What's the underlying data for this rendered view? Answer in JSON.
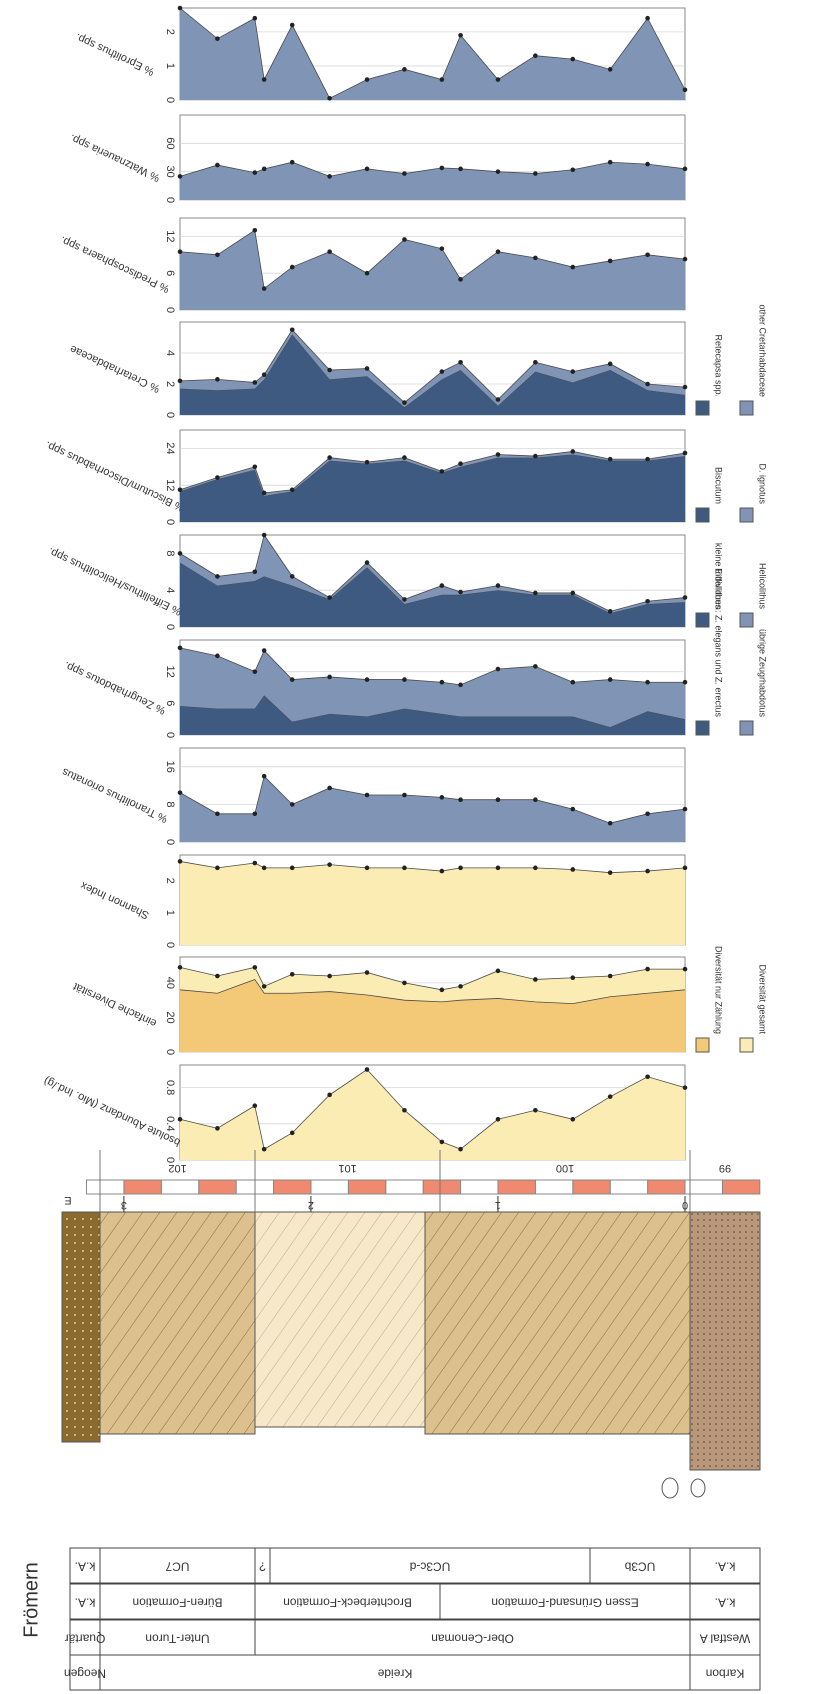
{
  "location": "Frömern",
  "chart_data": [
    {
      "type": "area",
      "title": "% Eprolithus spp.",
      "x": [
        2.7,
        2.5,
        2.3,
        2.25,
        2.1,
        1.9,
        1.7,
        1.5,
        1.3,
        1.2,
        1.0,
        0.8,
        0.6,
        0.4,
        0.2,
        0
      ],
      "xlim": [
        0,
        2.7
      ],
      "ylim": [
        0,
        2.7
      ],
      "yticks": [
        0,
        1,
        2
      ],
      "grid": true,
      "series": [
        {
          "color": "#8094b5",
          "markers": true,
          "values": [
            2.7,
            1.8,
            2.4,
            0.6,
            2.2,
            0.05,
            0.6,
            0.9,
            0.6,
            1.9,
            0.6,
            1.3,
            1.2,
            0.9,
            2.4,
            0.3
          ]
        }
      ]
    },
    {
      "type": "area",
      "title": "% Watznaueria spp.",
      "x": [
        2.7,
        2.5,
        2.3,
        2.25,
        2.1,
        1.9,
        1.7,
        1.5,
        1.3,
        1.2,
        1.0,
        0.8,
        0.6,
        0.4,
        0.2,
        0
      ],
      "xlim": [
        0,
        2.7
      ],
      "ylim": [
        0,
        90
      ],
      "yticks": [
        0,
        30,
        60
      ],
      "grid": true,
      "series": [
        {
          "color": "#8094b5",
          "markers": true,
          "values": [
            25,
            37,
            29,
            33,
            40,
            25,
            33,
            28,
            34,
            33,
            30,
            28,
            32,
            40,
            38,
            33
          ]
        }
      ]
    },
    {
      "type": "area",
      "title": "% Prediscosphaera spp.",
      "x": [
        2.7,
        2.5,
        2.3,
        2.25,
        2.1,
        1.9,
        1.7,
        1.5,
        1.3,
        1.2,
        1.0,
        0.8,
        0.6,
        0.4,
        0.2,
        0
      ],
      "xlim": [
        0,
        2.7
      ],
      "ylim": [
        0,
        15
      ],
      "yticks": [
        0,
        6,
        12
      ],
      "grid": true,
      "series": [
        {
          "color": "#8094b5",
          "markers": true,
          "values": [
            9.5,
            9,
            13,
            3.5,
            7,
            9.5,
            6,
            11.5,
            10,
            5,
            9.5,
            8.5,
            7,
            8,
            9,
            8.3
          ]
        }
      ]
    },
    {
      "type": "area",
      "title": "% Cretarhabdaceae",
      "stacked": true,
      "x": [
        2.7,
        2.5,
        2.3,
        2.25,
        2.1,
        1.9,
        1.7,
        1.5,
        1.3,
        1.2,
        1.0,
        0.8,
        0.6,
        0.4,
        0.2,
        0
      ],
      "xlim": [
        0,
        2.7
      ],
      "ylim": [
        0,
        6
      ],
      "yticks": [
        0,
        2,
        4
      ],
      "grid": true,
      "series": [
        {
          "name": "Retecapsa spp.",
          "color": "#3e5a80",
          "values": [
            1.7,
            1.6,
            1.7,
            2.3,
            5.2,
            2.3,
            2.5,
            0.5,
            2.3,
            2.9,
            0.6,
            2.8,
            2.1,
            2.9,
            1.6,
            1.3
          ]
        },
        {
          "name": "other Cretarhabdaceae",
          "color": "#8094b5",
          "markers": true,
          "values": [
            0.5,
            0.7,
            0.4,
            0.3,
            0.3,
            0.6,
            0.5,
            0.3,
            0.5,
            0.5,
            0.4,
            0.6,
            0.7,
            0.4,
            0.4,
            0.5
          ]
        }
      ]
    },
    {
      "type": "area",
      "title": "% Biscutum/Discorhabdus spp.",
      "stacked": true,
      "x": [
        2.7,
        2.5,
        2.3,
        2.25,
        2.1,
        1.9,
        1.7,
        1.5,
        1.3,
        1.2,
        1.0,
        0.8,
        0.6,
        0.4,
        0.2,
        0
      ],
      "xlim": [
        0,
        2.7
      ],
      "ylim": [
        0,
        30
      ],
      "yticks": [
        0,
        12,
        24
      ],
      "grid": true,
      "series": [
        {
          "name": "Biscutum",
          "color": "#3e5a80",
          "values": [
            10,
            14,
            17,
            8.5,
            10,
            20,
            19,
            20,
            16,
            18,
            21,
            21,
            22,
            20,
            20,
            21.5
          ]
        },
        {
          "name": "D. ignotus",
          "color": "#8094b5",
          "markers": true,
          "values": [
            0.5,
            0.5,
            1,
            1,
            0.5,
            1,
            0.5,
            1,
            0.5,
            1,
            1,
            0.5,
            1,
            0.5,
            0.5,
            1
          ]
        }
      ]
    },
    {
      "type": "area",
      "title": "% Eiffellithus/Helicolithus spp.",
      "stacked": true,
      "x": [
        2.7,
        2.5,
        2.3,
        2.25,
        2.1,
        1.9,
        1.7,
        1.5,
        1.3,
        1.2,
        1.0,
        0.8,
        0.6,
        0.4,
        0.2,
        0
      ],
      "xlim": [
        0,
        2.7
      ],
      "ylim": [
        0,
        10
      ],
      "yticks": [
        0,
        4,
        8
      ],
      "grid": true,
      "series": [
        {
          "name": "Eiffellithus",
          "color": "#3e5a80",
          "values": [
            7,
            4.5,
            5,
            5.5,
            4.5,
            3,
            6.5,
            2.5,
            3.5,
            3.5,
            4,
            3.5,
            3.5,
            1.5,
            2.5,
            2.7
          ]
        },
        {
          "name": "Helicolithus",
          "color": "#8094b5",
          "markers": true,
          "values": [
            1,
            1,
            1,
            4.5,
            1,
            0.2,
            0.5,
            0.5,
            1,
            0.3,
            0.5,
            0.2,
            0.2,
            0.2,
            0.3,
            0.5
          ]
        }
      ]
    },
    {
      "type": "area",
      "title": "% Zeugrhabdotus spp.",
      "stacked": true,
      "x": [
        2.7,
        2.5,
        2.3,
        2.25,
        2.1,
        1.9,
        1.7,
        1.5,
        1.3,
        1.2,
        1.0,
        0.8,
        0.6,
        0.4,
        0.2,
        0
      ],
      "xlim": [
        0,
        2.7
      ],
      "ylim": [
        0,
        18
      ],
      "yticks": [
        0,
        6,
        12
      ],
      "grid": true,
      "series": [
        {
          "name": "kleine Individuen: Z. elegans und Z. erectus",
          "color": "#3e5a80",
          "values": [
            5.5,
            5,
            5,
            7.5,
            2.5,
            4,
            3.5,
            5,
            4,
            3.5,
            3.5,
            3.5,
            3.5,
            1.5,
            4.5,
            3
          ]
        },
        {
          "name": "übrige Zeugrhabdotus",
          "color": "#8094b5",
          "markers": true,
          "values": [
            11,
            10,
            7,
            8.5,
            8,
            7,
            7,
            5.5,
            6,
            6,
            9,
            9.5,
            6.5,
            9,
            5.5,
            7
          ]
        }
      ]
    },
    {
      "type": "area",
      "title": "% Tranolithus orionatus",
      "x": [
        2.7,
        2.5,
        2.3,
        2.25,
        2.1,
        1.9,
        1.7,
        1.5,
        1.3,
        1.2,
        1.0,
        0.8,
        0.6,
        0.4,
        0.2,
        0
      ],
      "xlim": [
        0,
        2.7
      ],
      "ylim": [
        0,
        20
      ],
      "yticks": [
        0,
        8,
        16
      ],
      "grid": true,
      "series": [
        {
          "color": "#8094b5",
          "markers": true,
          "values": [
            10.5,
            6,
            6,
            14,
            8,
            11.5,
            10,
            10,
            9.5,
            9,
            9,
            9,
            7,
            4,
            6,
            7
          ]
        }
      ]
    },
    {
      "type": "area",
      "title": "Shannon Index",
      "x": [
        2.7,
        2.5,
        2.3,
        2.25,
        2.1,
        1.9,
        1.7,
        1.5,
        1.3,
        1.2,
        1.0,
        0.8,
        0.6,
        0.4,
        0.2,
        0
      ],
      "xlim": [
        0,
        2.7
      ],
      "ylim": [
        0,
        2.8
      ],
      "yticks": [
        0,
        1,
        2
      ],
      "grid": true,
      "series": [
        {
          "color": "#faecb3",
          "markers": true,
          "values": [
            2.6,
            2.4,
            2.55,
            2.4,
            2.4,
            2.5,
            2.4,
            2.4,
            2.3,
            2.4,
            2.4,
            2.4,
            2.35,
            2.25,
            2.3,
            2.4
          ]
        }
      ]
    },
    {
      "type": "area",
      "title": "einfache Diversität",
      "x": [
        2.7,
        2.5,
        2.3,
        2.25,
        2.1,
        1.9,
        1.7,
        1.5,
        1.3,
        1.2,
        1.0,
        0.8,
        0.6,
        0.4,
        0.2,
        0
      ],
      "xlim": [
        0,
        2.7
      ],
      "ylim": [
        0,
        55
      ],
      "yticks": [
        0,
        20,
        40
      ],
      "grid": true,
      "series": [
        {
          "name": "Diversität nur Zählung",
          "color": "#f3c877",
          "values": [
            36,
            34,
            42,
            34,
            34,
            35,
            33,
            30,
            29,
            30,
            31,
            29,
            28,
            32,
            34,
            36
          ]
        },
        {
          "name": "Diversität gesamt",
          "color": "#faecb3",
          "markers": true,
          "values": [
            49,
            44,
            49,
            38,
            45,
            44,
            46,
            40,
            36,
            38,
            47,
            42,
            43,
            44,
            48,
            48
          ]
        }
      ]
    },
    {
      "type": "area",
      "title": "absolute Abundanz (Mio. Ind./g)",
      "x": [
        2.7,
        2.5,
        2.3,
        2.25,
        2.1,
        1.9,
        1.7,
        1.5,
        1.3,
        1.2,
        1.0,
        0.8,
        0.6,
        0.4,
        0.2,
        0
      ],
      "xlim": [
        0,
        2.7
      ],
      "ylim": [
        0,
        1.05
      ],
      "yticks": [
        0,
        0.4,
        0.8
      ],
      "grid": true,
      "series": [
        {
          "color": "#faecb3",
          "markers": true,
          "values": [
            0.45,
            0.35,
            0.6,
            0.12,
            0.3,
            0.72,
            1.0,
            0.55,
            0.2,
            0.12,
            0.45,
            0.55,
            0.45,
            0.7,
            0.92,
            0.8
          ]
        }
      ]
    }
  ],
  "lithology": {
    "top_label": "E",
    "depth_ticks": [
      0,
      1,
      2,
      3
    ],
    "beds": [
      "99",
      "100",
      "101",
      "102"
    ]
  },
  "table": {
    "rows": [
      [
        "Karbon",
        "Kreide",
        "Neogen"
      ],
      [
        "Westfal A",
        "Ober-Cenoman",
        "Unter-Turon",
        "Quartär"
      ],
      [
        "k.A.",
        "Essen Grünsand-Formation",
        "Brochterbeck-Formation",
        "Büren-Formation",
        "k.A."
      ],
      [
        "k.A.",
        "UC3b",
        "UC3c-d",
        "?",
        "UC7",
        "k.A."
      ]
    ]
  }
}
